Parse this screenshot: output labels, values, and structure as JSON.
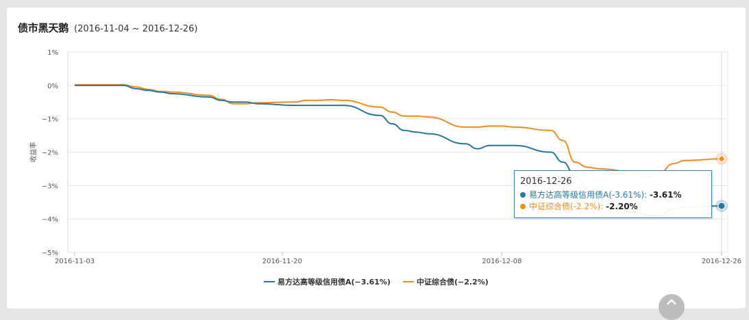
{
  "header": {
    "title": "债市黑天鹅",
    "date_range": "(2016-11-04 ~ 2016-12-26)"
  },
  "colors": {
    "fund": "#27779e",
    "index": "#f48a1c",
    "grid": "#e6e6e6",
    "tooltip_border": "#3e84ad"
  },
  "icons": {
    "scroll_up": "chevron-up-icon"
  },
  "tooltip": {
    "date": "2016-12-26",
    "rows": [
      {
        "label": "易方达高等级信用债A(-3.61%):",
        "value": "-3.61%"
      },
      {
        "label": "中证综合债(-2.2%):",
        "value": "-2.20%"
      }
    ]
  },
  "chart_data": {
    "type": "line",
    "title": "债市黑天鹅",
    "subtitle": "(2016-11-04 ~ 2016-12-26)",
    "xlabel": "",
    "ylabel": "收益率",
    "ylim": [
      -5,
      1
    ],
    "yticks": [
      1,
      0,
      -1,
      -2,
      -3,
      -4,
      -5
    ],
    "ytick_labels": [
      "1%",
      "0%",
      "-1%",
      "-2%",
      "-3%",
      "-4%",
      "-5%"
    ],
    "xlim": [
      "2016-11-03",
      "2016-12-26"
    ],
    "xtick_labels": [
      "2016-11-03",
      "2016-11-20",
      "2016-12-08",
      "2016-12-26"
    ],
    "grid": true,
    "legend_position": "bottom-center",
    "series": [
      {
        "name": "易方达高等级信用债A(-3.61%)",
        "x": [
          "2016-11-03",
          "2016-11-07",
          "2016-11-08",
          "2016-11-09",
          "2016-11-10",
          "2016-11-11",
          "2016-11-14",
          "2016-11-15",
          "2016-11-16",
          "2016-11-17",
          "2016-11-18",
          "2016-11-21",
          "2016-11-22",
          "2016-11-23",
          "2016-11-24",
          "2016-11-25",
          "2016-11-28",
          "2016-11-29",
          "2016-11-30",
          "2016-12-01",
          "2016-12-02",
          "2016-12-05",
          "2016-12-06",
          "2016-12-07",
          "2016-12-08",
          "2016-12-09",
          "2016-12-12",
          "2016-12-13",
          "2016-12-14",
          "2016-12-15",
          "2016-12-16",
          "2016-12-19",
          "2016-12-20",
          "2016-12-21",
          "2016-12-22",
          "2016-12-23",
          "2016-12-26"
        ],
        "y": [
          0.0,
          0.0,
          -0.1,
          -0.15,
          -0.2,
          -0.25,
          -0.35,
          -0.45,
          -0.5,
          -0.5,
          -0.55,
          -0.6,
          -0.6,
          -0.6,
          -0.6,
          -0.6,
          -0.9,
          -1.15,
          -1.35,
          -1.4,
          -1.45,
          -1.75,
          -1.9,
          -1.8,
          -1.8,
          -1.8,
          -2.0,
          -2.3,
          -2.7,
          -3.1,
          -3.4,
          -3.8,
          -3.9,
          -3.9,
          -3.7,
          -3.65,
          -3.61
        ]
      },
      {
        "name": "中证综合债(-2.2%)",
        "x": [
          "2016-11-03",
          "2016-11-07",
          "2016-11-08",
          "2016-11-09",
          "2016-11-10",
          "2016-11-11",
          "2016-11-14",
          "2016-11-15",
          "2016-11-16",
          "2016-11-17",
          "2016-11-18",
          "2016-11-21",
          "2016-11-22",
          "2016-11-23",
          "2016-11-24",
          "2016-11-25",
          "2016-11-28",
          "2016-11-29",
          "2016-11-30",
          "2016-12-01",
          "2016-12-02",
          "2016-12-05",
          "2016-12-06",
          "2016-12-07",
          "2016-12-08",
          "2016-12-09",
          "2016-12-12",
          "2016-12-13",
          "2016-12-14",
          "2016-12-15",
          "2016-12-16",
          "2016-12-19",
          "2016-12-20",
          "2016-12-21",
          "2016-12-22",
          "2016-12-23",
          "2016-12-26"
        ],
        "y": [
          0.02,
          0.02,
          -0.05,
          -0.12,
          -0.18,
          -0.2,
          -0.3,
          -0.42,
          -0.55,
          -0.55,
          -0.52,
          -0.5,
          -0.45,
          -0.45,
          -0.43,
          -0.45,
          -0.65,
          -0.8,
          -0.92,
          -0.92,
          -0.95,
          -1.25,
          -1.25,
          -1.22,
          -1.22,
          -1.25,
          -1.35,
          -1.65,
          -2.3,
          -2.45,
          -2.5,
          -2.6,
          -2.75,
          -2.6,
          -2.35,
          -2.25,
          -2.2
        ]
      }
    ]
  }
}
